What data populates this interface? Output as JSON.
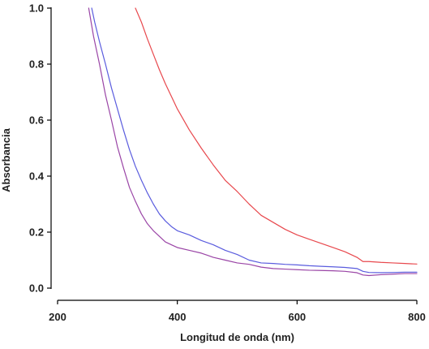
{
  "chart_data": {
    "type": "line",
    "title": "",
    "xlabel": "Longitud de onda (nm)",
    "ylabel": "Absorbancia",
    "xlim": [
      200,
      800
    ],
    "ylim": [
      0.0,
      1.0
    ],
    "x_ticks": [
      200,
      400,
      600,
      800
    ],
    "x_tick_labels": [
      "200",
      "400",
      "600",
      "800"
    ],
    "y_ticks": [
      0.0,
      0.2,
      0.4,
      0.6,
      0.8,
      1.0
    ],
    "y_tick_labels": [
      "0.0",
      "0.2",
      "0.4",
      "0.6",
      "0.8",
      "1.0"
    ],
    "grid": false,
    "legend": "none",
    "series": [
      {
        "color": "#e8484d",
        "x": [
          330,
          340,
          350,
          360,
          370,
          380,
          390,
          400,
          420,
          440,
          460,
          480,
          500,
          520,
          540,
          560,
          580,
          600,
          620,
          640,
          660,
          680,
          700,
          710,
          720,
          740,
          760,
          780,
          800
        ],
        "y": [
          1.0,
          0.95,
          0.89,
          0.835,
          0.78,
          0.73,
          0.685,
          0.64,
          0.565,
          0.5,
          0.44,
          0.385,
          0.345,
          0.3,
          0.26,
          0.235,
          0.21,
          0.19,
          0.175,
          0.16,
          0.145,
          0.13,
          0.11,
          0.095,
          0.095,
          0.092,
          0.09,
          0.088,
          0.086
        ]
      },
      {
        "color": "#5a5cde",
        "x": [
          257,
          262,
          270,
          280,
          290,
          300,
          310,
          320,
          330,
          340,
          350,
          360,
          370,
          380,
          390,
          400,
          420,
          440,
          460,
          480,
          500,
          520,
          540,
          560,
          580,
          600,
          620,
          640,
          660,
          680,
          700,
          710,
          720,
          740,
          760,
          780,
          800
        ],
        "y": [
          1.0,
          0.95,
          0.88,
          0.8,
          0.715,
          0.64,
          0.565,
          0.495,
          0.435,
          0.385,
          0.34,
          0.3,
          0.265,
          0.24,
          0.22,
          0.205,
          0.19,
          0.17,
          0.155,
          0.135,
          0.12,
          0.1,
          0.09,
          0.088,
          0.085,
          0.083,
          0.08,
          0.078,
          0.076,
          0.074,
          0.07,
          0.06,
          0.056,
          0.055,
          0.056,
          0.057,
          0.057
        ]
      },
      {
        "color": "#9a45a6",
        "x": [
          252,
          260,
          270,
          280,
          290,
          300,
          310,
          320,
          330,
          340,
          350,
          360,
          370,
          380,
          390,
          400,
          420,
          440,
          460,
          480,
          500,
          520,
          540,
          560,
          580,
          600,
          620,
          640,
          660,
          680,
          700,
          710,
          720,
          740,
          760,
          780,
          800
        ],
        "y": [
          1.0,
          0.9,
          0.8,
          0.69,
          0.6,
          0.505,
          0.43,
          0.36,
          0.31,
          0.265,
          0.23,
          0.205,
          0.185,
          0.165,
          0.155,
          0.145,
          0.135,
          0.125,
          0.11,
          0.1,
          0.09,
          0.085,
          0.075,
          0.07,
          0.068,
          0.066,
          0.064,
          0.063,
          0.062,
          0.06,
          0.055,
          0.047,
          0.045,
          0.048,
          0.05,
          0.052,
          0.052
        ]
      }
    ]
  }
}
